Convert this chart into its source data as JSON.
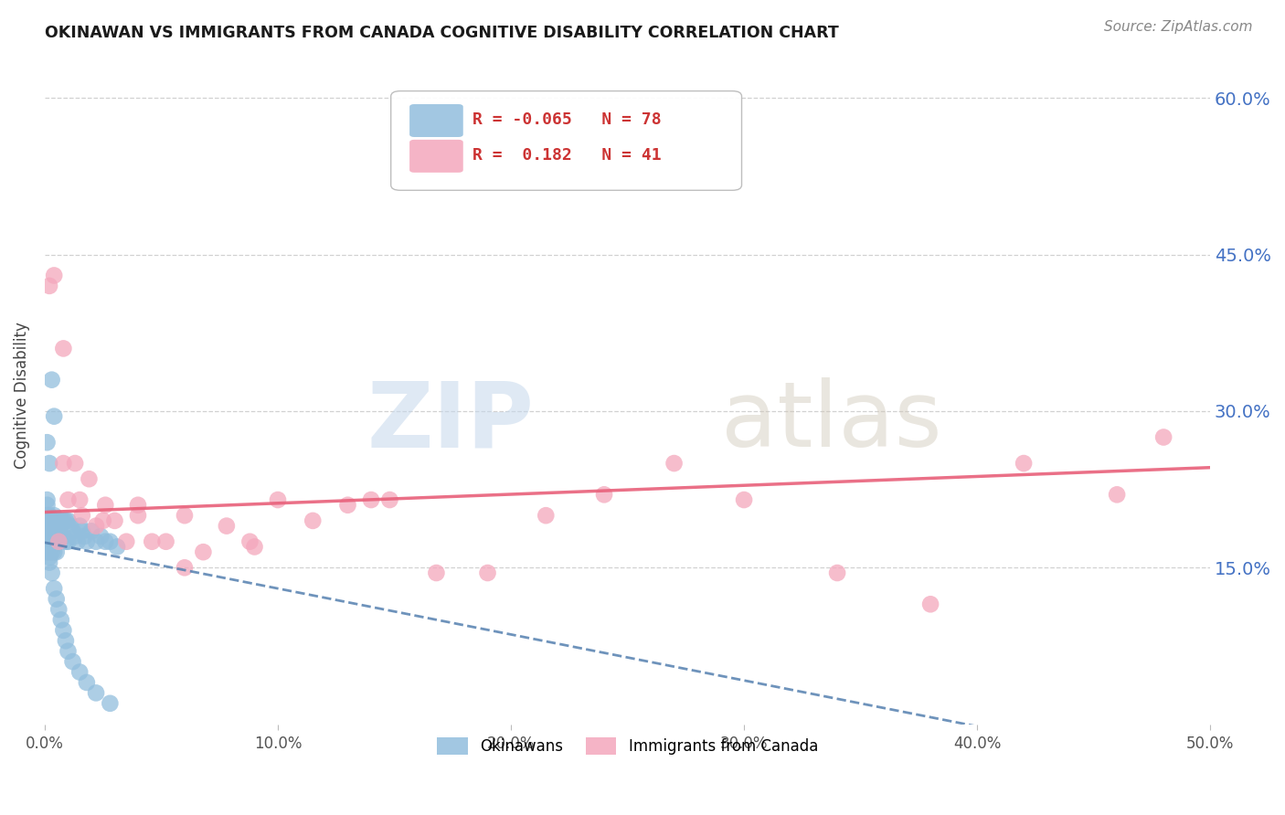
{
  "title": "OKINAWAN VS IMMIGRANTS FROM CANADA COGNITIVE DISABILITY CORRELATION CHART",
  "source": "Source: ZipAtlas.com",
  "ylabel": "Cognitive Disability",
  "xlim": [
    0.0,
    0.5
  ],
  "ylim": [
    0.0,
    0.63
  ],
  "xlabel_vals": [
    0.0,
    0.1,
    0.2,
    0.3,
    0.4,
    0.5
  ],
  "ylabel_vals": [
    0.15,
    0.3,
    0.45,
    0.6
  ],
  "okinawan_R": -0.065,
  "okinawan_N": 78,
  "canada_R": 0.182,
  "canada_N": 41,
  "okinawan_color": "#92bedd",
  "canada_color": "#f4a7bc",
  "okinawan_line_color": "#5580b0",
  "canada_line_color": "#e8607a",
  "watermark_zip": "ZIP",
  "watermark_atlas": "atlas",
  "legend_label_1": "Okinawans",
  "legend_label_2": "Immigrants from Canada",
  "okinawan_x": [
    0.001,
    0.001,
    0.001,
    0.001,
    0.001,
    0.001,
    0.001,
    0.001,
    0.001,
    0.001,
    0.002,
    0.002,
    0.002,
    0.002,
    0.002,
    0.002,
    0.002,
    0.002,
    0.002,
    0.003,
    0.003,
    0.003,
    0.003,
    0.003,
    0.003,
    0.003,
    0.004,
    0.004,
    0.004,
    0.004,
    0.004,
    0.005,
    0.005,
    0.005,
    0.005,
    0.006,
    0.006,
    0.006,
    0.007,
    0.007,
    0.008,
    0.008,
    0.009,
    0.009,
    0.01,
    0.01,
    0.011,
    0.012,
    0.013,
    0.014,
    0.015,
    0.016,
    0.017,
    0.018,
    0.02,
    0.022,
    0.024,
    0.026,
    0.028,
    0.031,
    0.001,
    0.002,
    0.003,
    0.004,
    0.002,
    0.003,
    0.004,
    0.005,
    0.006,
    0.007,
    0.008,
    0.009,
    0.01,
    0.012,
    0.015,
    0.018,
    0.022,
    0.028
  ],
  "okinawan_y": [
    0.2,
    0.195,
    0.19,
    0.185,
    0.21,
    0.175,
    0.18,
    0.165,
    0.17,
    0.215,
    0.2,
    0.195,
    0.19,
    0.185,
    0.18,
    0.175,
    0.17,
    0.16,
    0.165,
    0.195,
    0.19,
    0.185,
    0.18,
    0.175,
    0.17,
    0.165,
    0.2,
    0.195,
    0.185,
    0.175,
    0.165,
    0.195,
    0.185,
    0.175,
    0.165,
    0.195,
    0.185,
    0.175,
    0.195,
    0.18,
    0.195,
    0.18,
    0.195,
    0.175,
    0.195,
    0.175,
    0.19,
    0.185,
    0.18,
    0.175,
    0.19,
    0.185,
    0.18,
    0.175,
    0.185,
    0.175,
    0.18,
    0.175,
    0.175,
    0.17,
    0.27,
    0.25,
    0.33,
    0.295,
    0.155,
    0.145,
    0.13,
    0.12,
    0.11,
    0.1,
    0.09,
    0.08,
    0.07,
    0.06,
    0.05,
    0.04,
    0.03,
    0.02
  ],
  "canada_x": [
    0.002,
    0.004,
    0.006,
    0.008,
    0.01,
    0.013,
    0.016,
    0.019,
    0.022,
    0.026,
    0.03,
    0.035,
    0.04,
    0.046,
    0.052,
    0.06,
    0.068,
    0.078,
    0.088,
    0.1,
    0.115,
    0.13,
    0.148,
    0.168,
    0.19,
    0.215,
    0.24,
    0.27,
    0.3,
    0.34,
    0.38,
    0.42,
    0.46,
    0.008,
    0.015,
    0.025,
    0.04,
    0.06,
    0.09,
    0.14,
    0.48
  ],
  "canada_y": [
    0.42,
    0.43,
    0.175,
    0.25,
    0.215,
    0.25,
    0.2,
    0.235,
    0.19,
    0.21,
    0.195,
    0.175,
    0.2,
    0.175,
    0.175,
    0.2,
    0.165,
    0.19,
    0.175,
    0.215,
    0.195,
    0.21,
    0.215,
    0.145,
    0.145,
    0.2,
    0.22,
    0.25,
    0.215,
    0.145,
    0.115,
    0.25,
    0.22,
    0.36,
    0.215,
    0.195,
    0.21,
    0.15,
    0.17,
    0.215,
    0.275
  ]
}
